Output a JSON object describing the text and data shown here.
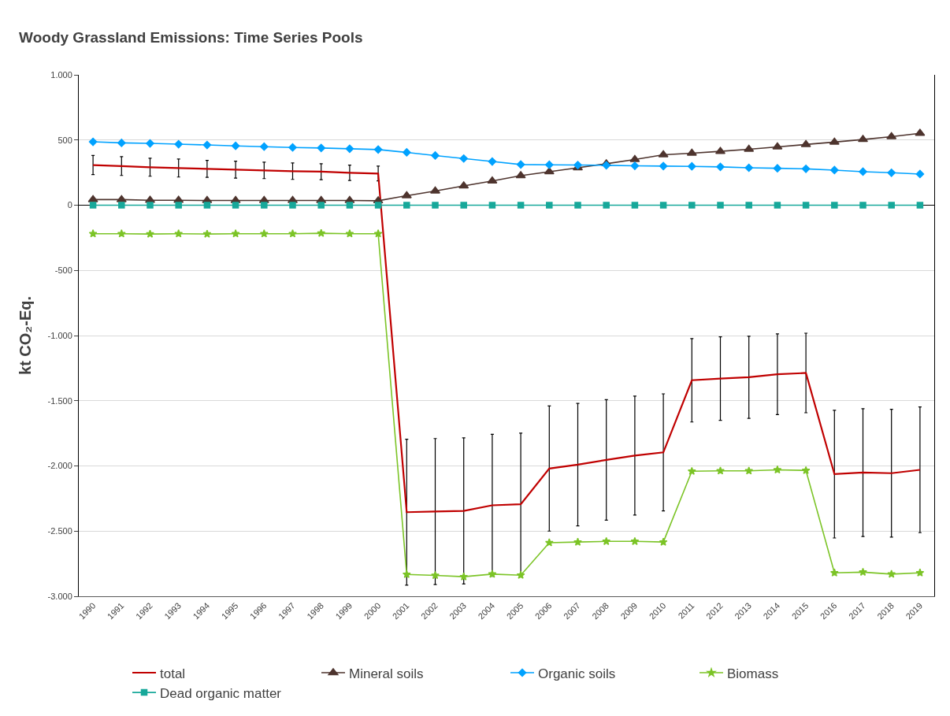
{
  "chart_data": {
    "type": "line",
    "title": "Woody Grassland Emissions: Time Series Pools",
    "ylabel": "kt CO₂-Eq.",
    "categories": [
      "1990",
      "1991",
      "1992",
      "1993",
      "1994",
      "1995",
      "1996",
      "1997",
      "1998",
      "1999",
      "2000",
      "2001",
      "2002",
      "2003",
      "2004",
      "2005",
      "2006",
      "2007",
      "2008",
      "2009",
      "2010",
      "2011",
      "2012",
      "2013",
      "2014",
      "2015",
      "2016",
      "2017",
      "2018",
      "2019"
    ],
    "ylim": [
      -3000,
      1000
    ],
    "yticks": [
      {
        "value": -3000,
        "label": "-3.000"
      },
      {
        "value": -2500,
        "label": "-2.500"
      },
      {
        "value": -2000,
        "label": "-2.000"
      },
      {
        "value": -1500,
        "label": "-1.500"
      },
      {
        "value": -1000,
        "label": "-1.000"
      },
      {
        "value": -500,
        "label": "-500"
      },
      0,
      500,
      {
        "value": 1000,
        "label": "1.000"
      }
    ],
    "grid": "y",
    "legend": "bottom",
    "series": [
      {
        "name": "total",
        "color": "#c00000",
        "marker": "none",
        "values": [
          308,
          300,
          291,
          285,
          279,
          273,
          267,
          261,
          257,
          249,
          243,
          -2355,
          -2350,
          -2345,
          -2302,
          -2294,
          -2020,
          -1990,
          -1954,
          -1921,
          -1896,
          -1343,
          -1330,
          -1320,
          -1297,
          -1287,
          -2063,
          -2051,
          -2056,
          -2030
        ],
        "errors": [
          73,
          72,
          69,
          69,
          65,
          65,
          63,
          63,
          61,
          59,
          57,
          560,
          560,
          560,
          545,
          545,
          480,
          470,
          462,
          456,
          449,
          320,
          320,
          315,
          310,
          305,
          490,
          490,
          490,
          482
        ]
      },
      {
        "name": "Mineral soils",
        "color": "#4e342e",
        "marker": "triangle",
        "values": [
          43,
          43,
          38,
          38,
          36,
          36,
          36,
          36,
          36,
          36,
          34,
          73,
          109,
          148,
          186,
          227,
          257,
          287,
          318,
          350,
          387,
          399,
          413,
          429,
          447,
          466,
          484,
          504,
          526,
          551
        ]
      },
      {
        "name": "Organic soils",
        "color": "#00a2ff",
        "marker": "diamond",
        "values": [
          486,
          478,
          474,
          468,
          462,
          455,
          449,
          443,
          439,
          433,
          427,
          405,
          381,
          358,
          335,
          312,
          310,
          308,
          306,
          302,
          300,
          298,
          294,
          287,
          283,
          279,
          269,
          257,
          249,
          239
        ]
      },
      {
        "name": "Biomass",
        "color": "#7cc427",
        "marker": "star",
        "values": [
          -219,
          -219,
          -221,
          -219,
          -221,
          -219,
          -219,
          -219,
          -215,
          -219,
          -219,
          -2832,
          -2840,
          -2850,
          -2830,
          -2838,
          -2589,
          -2584,
          -2579,
          -2579,
          -2584,
          -2041,
          -2038,
          -2038,
          -2030,
          -2035,
          -2820,
          -2815,
          -2830,
          -2820
        ]
      },
      {
        "name": "Dead organic matter",
        "color": "#17a89a",
        "marker": "square",
        "values": [
          0,
          0,
          0,
          0,
          0,
          0,
          0,
          0,
          0,
          0,
          0,
          0,
          0,
          0,
          0,
          0,
          0,
          0,
          0,
          0,
          0,
          0,
          0,
          0,
          0,
          0,
          0,
          0,
          0,
          0
        ]
      }
    ]
  }
}
